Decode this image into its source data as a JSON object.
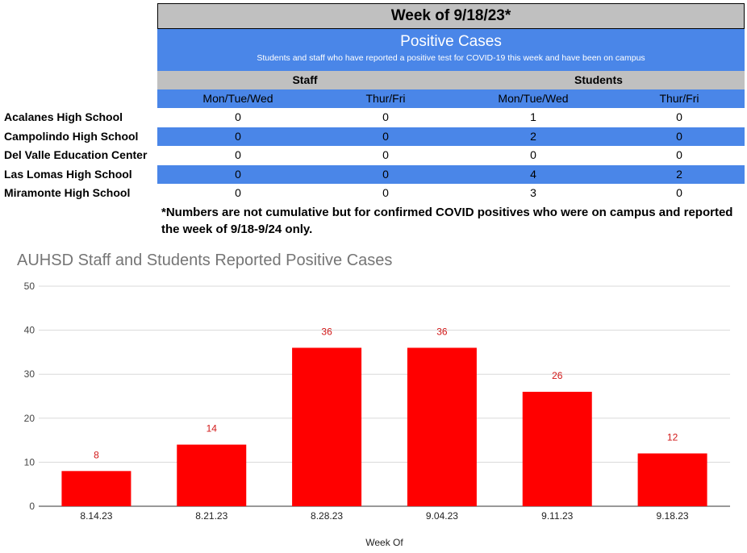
{
  "table": {
    "title": "Week of 9/18/23*",
    "heading": "Positive Cases",
    "subheading": "Students and staff who have reported a positive test for COVID-19 this week and have been on campus",
    "groups": [
      "Staff",
      "Students"
    ],
    "subcolumns": [
      "Mon/Tue/Wed",
      "Thur/Fri",
      "Mon/Tue/Wed",
      "Thur/Fri"
    ],
    "rows": [
      {
        "school": "Acalanes High School",
        "values": [
          "0",
          "0",
          "1",
          "0"
        ]
      },
      {
        "school": "Campolindo High School",
        "values": [
          "0",
          "0",
          "2",
          "0"
        ]
      },
      {
        "school": "Del Valle Education Center",
        "values": [
          "0",
          "0",
          "0",
          "0"
        ]
      },
      {
        "school": "Las Lomas High School",
        "values": [
          "0",
          "0",
          "4",
          "2"
        ]
      },
      {
        "school": "Miramonte High School",
        "values": [
          "0",
          "0",
          "3",
          "0"
        ]
      }
    ],
    "note": "*Numbers are not cumulative but for confirmed COVID positives who were on campus and reported the week of 9/18-9/24 only."
  },
  "colors": {
    "header_gray": "#c0c0c0",
    "accent_blue": "#4a86e8",
    "bar_red": "#ff0000",
    "label_red": "#d21818"
  },
  "chart_data": {
    "type": "bar",
    "title": "AUHSD Staff and Students Reported Positive Cases",
    "xlabel": "Week Of",
    "ylabel": "",
    "categories": [
      "8.14.23",
      "8.21.23",
      "8.28.23",
      "9.04.23",
      "9.11.23",
      "9.18.23"
    ],
    "values": [
      8,
      14,
      36,
      36,
      26,
      12
    ],
    "ylim": [
      0,
      50
    ],
    "yticks": [
      0,
      10,
      20,
      30,
      40,
      50
    ],
    "grid": true,
    "data_labels": true
  }
}
